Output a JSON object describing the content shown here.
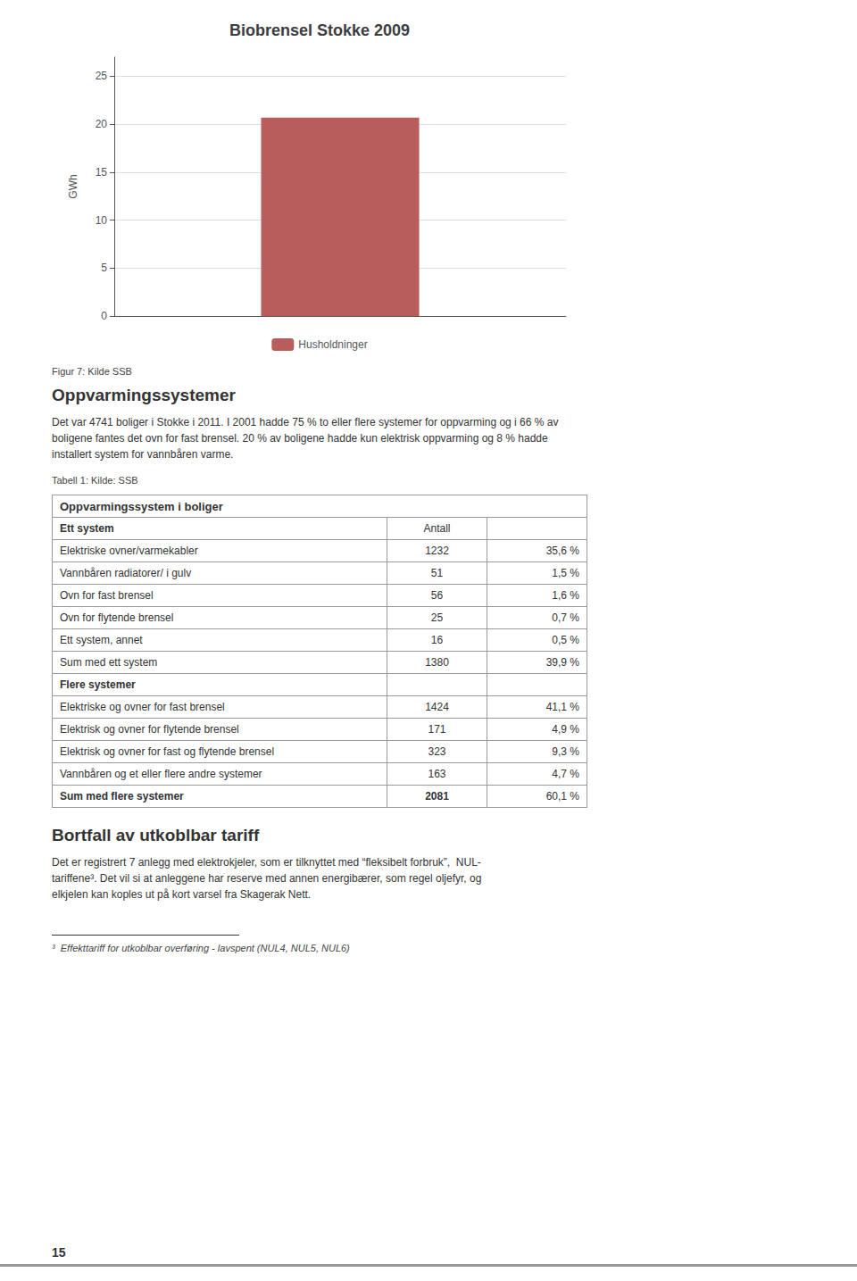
{
  "chart_data": {
    "type": "bar",
    "title": "Biobrensel Stokke 2009",
    "ylabel": "GWh",
    "categories": [
      null
    ],
    "series": [
      {
        "name": "Husholdninger",
        "color": "#B85C5C",
        "values": [
          20.7
        ]
      }
    ],
    "ylim": [
      0,
      27
    ],
    "yticks": [
      0,
      5,
      10,
      15,
      20,
      25
    ],
    "grid": true,
    "legend": "bottom",
    "tick_labels": "y"
  },
  "page": {
    "fig_caption": "Figur 7: Kilde SSB",
    "section_heading": "Oppvarmingssystemer",
    "section_text": [
      "Det var 4741 boliger i Stokke i 2011. I 2001 hadde 75 % to eller flere systemer for oppvarming og i 66 % av",
      "boligene fantes det ovn for fast brensel. 20 % av boligene hadde kun elektrisk oppvarming og 8 % hadde",
      "installert system for vannbåren varme."
    ],
    "table_caption": "Tabell 1: Kilde: SSB",
    "table": {
      "header": "Oppvarmingssystem i boliger",
      "columns": [
        "Ett system",
        "Antall"
      ],
      "rows": [
        {
          "label": "Elektriske ovner/varmekabler",
          "value": 1232,
          "pct": "35,6 %"
        },
        {
          "label": "Vannbåren radiatorer/ i gulv",
          "value": 51,
          "pct": "1,5 %"
        },
        {
          "label": "Ovn for fast brensel",
          "value": 56,
          "pct": "1,6 %"
        },
        {
          "label": "Ovn for flytende brensel",
          "value": 25,
          "pct": "0,7 %"
        },
        {
          "label": "Ett system, annet",
          "value": 16,
          "pct": "0,5 %"
        },
        {
          "label": "Sum med ett system",
          "value": 1380,
          "pct": "39,9 %"
        },
        {
          "label": "Flere systemer"
        },
        {
          "label": "Elektriske og ovner for fast brensel",
          "value": 1424,
          "pct": "41,1 %"
        },
        {
          "label": "Elektrisk og ovner for flytende brensel",
          "value": 171,
          "pct": "4,9 %"
        },
        {
          "label": "Elektrisk og ovner for fast og flytende brensel",
          "value": 323,
          "pct": "9,3 %"
        },
        {
          "label": "Vannbåren og et eller flere andre systemer",
          "value": 163,
          "pct": "4,7 %"
        },
        {
          "label": "Sum med flere systemer",
          "value": 2081,
          "pct": "60,1 %"
        }
      ]
    },
    "section2_heading": "Bortfall av utkoblbar tariff",
    "section2_text": [
      "Det er registrert 7 anlegg med elektrokjeler, som er tilknyttet med “fleksibelt forbruk”,  NUL-",
      "tariffene³. Det vil si at anleggene har reserve med annen energibærer, som regel oljefyr, og",
      "elkjelen kan koples ut på kort varsel fra Skagerak Nett."
    ],
    "footnote": "³  Effekttariff for utkoblbar overføring - lavspent (NUL4, NUL5, NUL6)",
    "page_number": "15"
  }
}
